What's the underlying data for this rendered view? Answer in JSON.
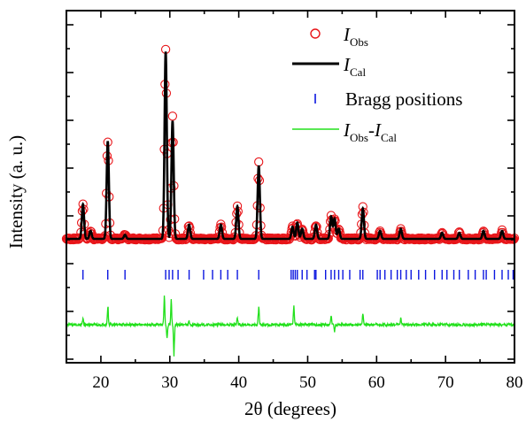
{
  "chart_data": {
    "type": "scatter",
    "xlabel": "2θ (degrees)",
    "ylabel": "Intensity (a. u.)",
    "xlim": [
      15,
      80
    ],
    "xticks": [
      "20",
      "30",
      "40",
      "50",
      "60",
      "70",
      "80"
    ],
    "y_tick_labels_shown": false,
    "grid": false,
    "legend_position": "top-right",
    "legend": [
      {
        "label": "I",
        "label_sub": "Obs",
        "style": "open red circles"
      },
      {
        "label": "I",
        "label_sub": "Cal",
        "style": "black line"
      },
      {
        "label": "Bragg positions",
        "style": "blue vertical ticks"
      },
      {
        "label": "I",
        "label_sub": "Obs",
        "label_mid": "-",
        "label2": "I",
        "label2_sub": "Cal",
        "style": "green line"
      }
    ],
    "colors": {
      "obs": "#e8161a",
      "cal": "#000000",
      "bragg": "#0b16e0",
      "diff": "#22e01c"
    },
    "background_level": 0.0,
    "peaks": [
      {
        "x": 17.4,
        "h": 0.17
      },
      {
        "x": 18.5,
        "h": 0.04
      },
      {
        "x": 21.0,
        "h": 0.48
      },
      {
        "x": 23.5,
        "h": 0.02
      },
      {
        "x": 29.4,
        "h": 0.92
      },
      {
        "x": 30.4,
        "h": 0.58
      },
      {
        "x": 32.8,
        "h": 0.07
      },
      {
        "x": 37.4,
        "h": 0.07
      },
      {
        "x": 39.8,
        "h": 0.16
      },
      {
        "x": 42.9,
        "h": 0.36
      },
      {
        "x": 47.8,
        "h": 0.06
      },
      {
        "x": 48.5,
        "h": 0.08
      },
      {
        "x": 49.2,
        "h": 0.05
      },
      {
        "x": 51.2,
        "h": 0.07
      },
      {
        "x": 53.4,
        "h": 0.11
      },
      {
        "x": 53.9,
        "h": 0.1
      },
      {
        "x": 54.5,
        "h": 0.05
      },
      {
        "x": 58.0,
        "h": 0.15
      },
      {
        "x": 60.5,
        "h": 0.04
      },
      {
        "x": 63.5,
        "h": 0.05
      },
      {
        "x": 69.5,
        "h": 0.03
      },
      {
        "x": 72.0,
        "h": 0.03
      },
      {
        "x": 75.5,
        "h": 0.04
      },
      {
        "x": 78.2,
        "h": 0.04
      }
    ],
    "bragg_positions": [
      17.4,
      21.0,
      23.5,
      29.4,
      29.9,
      30.4,
      31.2,
      32.8,
      34.9,
      36.2,
      37.4,
      38.4,
      39.8,
      42.9,
      47.6,
      47.9,
      48.2,
      48.5,
      49.2,
      49.9,
      51.0,
      51.2,
      52.6,
      53.4,
      53.9,
      54.5,
      55.1,
      56.1,
      57.6,
      58.0,
      60.1,
      60.5,
      61.2,
      62.1,
      63.0,
      63.5,
      64.3,
      65.0,
      66.1,
      67.1,
      68.4,
      69.5,
      70.2,
      71.2,
      72.0,
      73.3,
      74.3,
      75.5,
      75.9,
      77.1,
      78.2,
      79.1,
      79.8
    ],
    "difference_spikes": [
      {
        "x": 17.4,
        "d": 0.03
      },
      {
        "x": 21.0,
        "d": 0.09
      },
      {
        "x": 29.2,
        "d": 0.12
      },
      {
        "x": 29.6,
        "d": -0.08
      },
      {
        "x": 30.2,
        "d": 0.1
      },
      {
        "x": 30.6,
        "d": -0.14
      },
      {
        "x": 32.8,
        "d": 0.02
      },
      {
        "x": 39.8,
        "d": 0.03
      },
      {
        "x": 42.9,
        "d": 0.09
      },
      {
        "x": 48.0,
        "d": 0.09
      },
      {
        "x": 53.4,
        "d": 0.05
      },
      {
        "x": 53.9,
        "d": -0.03
      },
      {
        "x": 58.0,
        "d": 0.05
      },
      {
        "x": 63.5,
        "d": 0.03
      }
    ]
  }
}
